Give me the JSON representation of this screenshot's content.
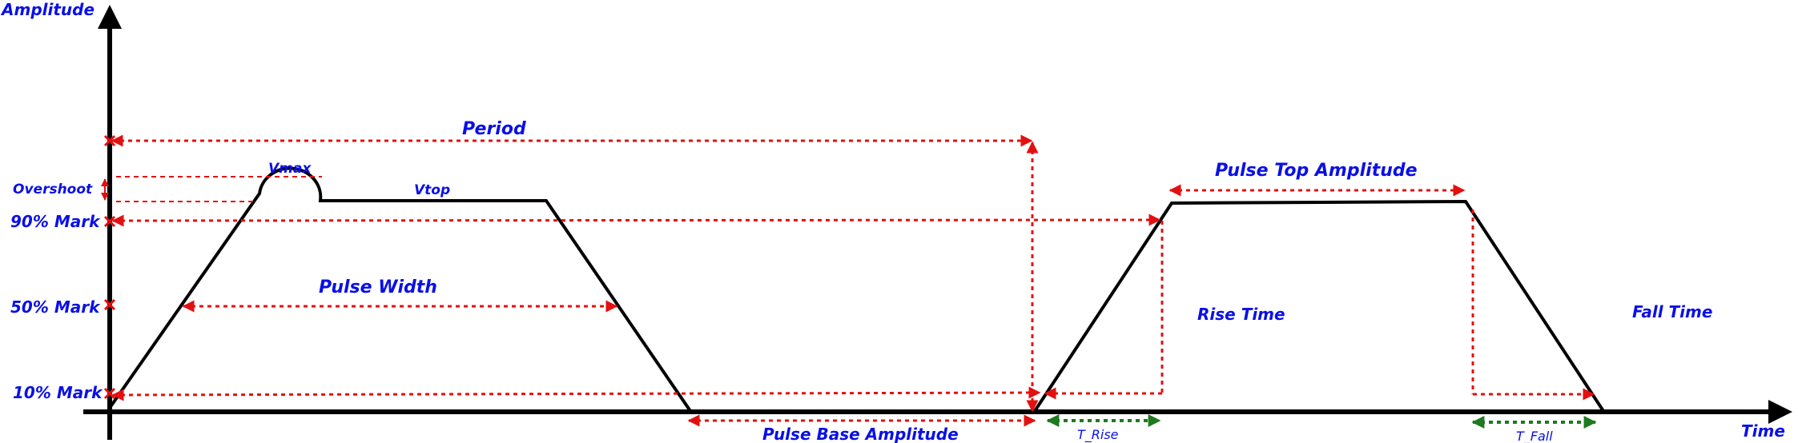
{
  "labels": {
    "amplitude_axis": "Amplitude",
    "time_axis": "Time",
    "period": "Period",
    "vmax": "Vmax",
    "vtop": "Vtop",
    "overshoot": "Overshoot",
    "mark_90": "90% Mark",
    "mark_50": "50% Mark",
    "mark_10": "10% Mark",
    "pulse_width": "Pulse Width",
    "pulse_top_amplitude": "Pulse Top Amplitude",
    "rise_time": "Rise Time",
    "fall_time": "Fall Time",
    "pulse_base_amplitude": "Pulse Base Amplitude",
    "t_rise": "T_Rise",
    "t_fall": "T_Fall"
  },
  "colors": {
    "label_text": "#0a10e6",
    "measure_arrows": "#e31010",
    "time_arrows": "#1e7a1e",
    "waveform": "#000000"
  }
}
